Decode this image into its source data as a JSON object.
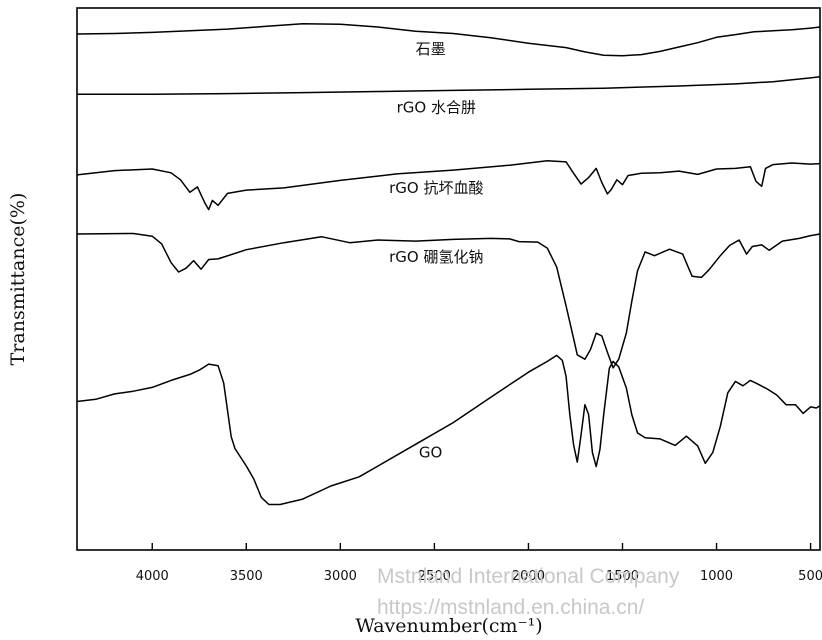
{
  "chart_data": {
    "type": "line",
    "title": "",
    "xlabel": "Wavenumber(cm⁻¹)",
    "ylabel": "Transmittance(%)",
    "xlim": [
      4400,
      450
    ],
    "x_reversed": true,
    "grid": false,
    "x_ticks": [
      4000,
      3500,
      3000,
      2500,
      2000,
      1500,
      1000,
      500
    ],
    "x_tick_labels": [
      "4000",
      "3500",
      "3000",
      "2500",
      "2000",
      "1500",
      "1000",
      "500"
    ],
    "series_note": "y values are relative transmittance in arbitrary units (0 = bottom of axis, 100 = top); the y axis has no ticks",
    "series": [
      {
        "name": "石墨",
        "color": "#000000",
        "label_x": 2520,
        "points": [
          [
            4400,
            95.2
          ],
          [
            4200,
            95.3
          ],
          [
            4000,
            95.5
          ],
          [
            3800,
            95.8
          ],
          [
            3600,
            96.1
          ],
          [
            3400,
            96.6
          ],
          [
            3200,
            97.1
          ],
          [
            3000,
            97.0
          ],
          [
            2800,
            96.5
          ],
          [
            2600,
            95.7
          ],
          [
            2400,
            95.3
          ],
          [
            2200,
            94.5
          ],
          [
            2000,
            93.5
          ],
          [
            1800,
            92.7
          ],
          [
            1700,
            91.9
          ],
          [
            1600,
            91.3
          ],
          [
            1500,
            91.2
          ],
          [
            1400,
            91.4
          ],
          [
            1300,
            92.0
          ],
          [
            1200,
            92.8
          ],
          [
            1100,
            93.6
          ],
          [
            1000,
            94.6
          ],
          [
            900,
            95.1
          ],
          [
            800,
            95.6
          ],
          [
            700,
            95.8
          ],
          [
            600,
            96.0
          ],
          [
            500,
            96.3
          ],
          [
            450,
            96.5
          ]
        ]
      },
      {
        "name": "rGO 水合肼",
        "color": "#000000",
        "label_x": 2490,
        "points": [
          [
            4400,
            84.1
          ],
          [
            4000,
            84.1
          ],
          [
            3600,
            84.2
          ],
          [
            3200,
            84.4
          ],
          [
            2800,
            84.6
          ],
          [
            2400,
            84.8
          ],
          [
            2000,
            85.0
          ],
          [
            1600,
            85.2
          ],
          [
            1200,
            85.6
          ],
          [
            900,
            86.0
          ],
          [
            700,
            86.4
          ],
          [
            500,
            87.1
          ],
          [
            450,
            87.3
          ]
        ]
      },
      {
        "name": "rGO 抗坏血酸",
        "color": "#000000",
        "label_x": 2490,
        "points": [
          [
            4400,
            69.2
          ],
          [
            4200,
            70.0
          ],
          [
            4000,
            70.3
          ],
          [
            3900,
            69.6
          ],
          [
            3850,
            68.3
          ],
          [
            3800,
            66.0
          ],
          [
            3760,
            67.0
          ],
          [
            3720,
            64.0
          ],
          [
            3700,
            62.8
          ],
          [
            3680,
            64.5
          ],
          [
            3650,
            63.6
          ],
          [
            3600,
            65.8
          ],
          [
            3500,
            66.4
          ],
          [
            3300,
            66.8
          ],
          [
            3000,
            68.2
          ],
          [
            2700,
            69.4
          ],
          [
            2400,
            70.1
          ],
          [
            2100,
            71.0
          ],
          [
            1900,
            71.8
          ],
          [
            1800,
            71.6
          ],
          [
            1760,
            69.5
          ],
          [
            1720,
            67.5
          ],
          [
            1680,
            68.7
          ],
          [
            1640,
            70.4
          ],
          [
            1610,
            67.8
          ],
          [
            1580,
            65.7
          ],
          [
            1560,
            66.5
          ],
          [
            1530,
            68.3
          ],
          [
            1500,
            67.4
          ],
          [
            1470,
            69.1
          ],
          [
            1400,
            69.5
          ],
          [
            1300,
            69.6
          ],
          [
            1200,
            69.9
          ],
          [
            1100,
            69.3
          ],
          [
            1000,
            70.3
          ],
          [
            900,
            70.4
          ],
          [
            820,
            70.7
          ],
          [
            790,
            68.0
          ],
          [
            760,
            67.1
          ],
          [
            740,
            70.4
          ],
          [
            700,
            71.1
          ],
          [
            600,
            71.4
          ],
          [
            500,
            71.2
          ],
          [
            450,
            71.3
          ]
        ]
      },
      {
        "name": "rGO 硼氢化钠",
        "color": "#000000",
        "label_x": 2490,
        "points": [
          [
            4400,
            58.3
          ],
          [
            4100,
            58.4
          ],
          [
            4000,
            57.9
          ],
          [
            3950,
            56.5
          ],
          [
            3900,
            53.0
          ],
          [
            3860,
            51.3
          ],
          [
            3820,
            52.0
          ],
          [
            3780,
            53.4
          ],
          [
            3740,
            51.8
          ],
          [
            3700,
            53.6
          ],
          [
            3650,
            53.7
          ],
          [
            3500,
            55.4
          ],
          [
            3300,
            56.7
          ],
          [
            3100,
            57.8
          ],
          [
            2950,
            56.7
          ],
          [
            2800,
            57.2
          ],
          [
            2600,
            57.0
          ],
          [
            2400,
            57.3
          ],
          [
            2200,
            57.5
          ],
          [
            2100,
            57.4
          ],
          [
            2050,
            56.9
          ],
          [
            1950,
            56.8
          ],
          [
            1900,
            55.7
          ],
          [
            1850,
            52.2
          ],
          [
            1800,
            45.0
          ],
          [
            1760,
            39.0
          ],
          [
            1740,
            36.0
          ],
          [
            1700,
            35.2
          ],
          [
            1670,
            37.0
          ],
          [
            1640,
            40.0
          ],
          [
            1610,
            39.5
          ],
          [
            1580,
            36.5
          ],
          [
            1550,
            33.6
          ],
          [
            1520,
            35.2
          ],
          [
            1480,
            40.0
          ],
          [
            1450,
            46.0
          ],
          [
            1420,
            51.5
          ],
          [
            1380,
            55.0
          ],
          [
            1330,
            54.3
          ],
          [
            1250,
            55.5
          ],
          [
            1180,
            54.6
          ],
          [
            1130,
            50.5
          ],
          [
            1080,
            50.3
          ],
          [
            1040,
            51.7
          ],
          [
            980,
            54.3
          ],
          [
            930,
            56.2
          ],
          [
            880,
            57.2
          ],
          [
            840,
            54.6
          ],
          [
            810,
            56.0
          ],
          [
            760,
            56.3
          ],
          [
            720,
            55.3
          ],
          [
            650,
            57.0
          ],
          [
            560,
            57.5
          ],
          [
            500,
            58.0
          ],
          [
            450,
            58.3
          ]
        ]
      },
      {
        "name": "GO",
        "color": "#000000",
        "label_x": 2520,
        "points": [
          [
            4400,
            27.4
          ],
          [
            4300,
            27.8
          ],
          [
            4200,
            28.8
          ],
          [
            4100,
            29.3
          ],
          [
            4000,
            30.0
          ],
          [
            3900,
            31.3
          ],
          [
            3800,
            32.4
          ],
          [
            3750,
            33.2
          ],
          [
            3700,
            34.3
          ],
          [
            3650,
            34.0
          ],
          [
            3620,
            30.8
          ],
          [
            3580,
            20.9
          ],
          [
            3560,
            18.7
          ],
          [
            3500,
            15.5
          ],
          [
            3460,
            13.1
          ],
          [
            3420,
            9.7
          ],
          [
            3380,
            8.4
          ],
          [
            3320,
            8.4
          ],
          [
            3200,
            9.4
          ],
          [
            3050,
            11.8
          ],
          [
            2900,
            13.5
          ],
          [
            2800,
            15.5
          ],
          [
            2600,
            19.5
          ],
          [
            2400,
            23.5
          ],
          [
            2200,
            28.2
          ],
          [
            2000,
            32.8
          ],
          [
            1900,
            34.8
          ],
          [
            1850,
            35.9
          ],
          [
            1820,
            35.0
          ],
          [
            1800,
            32.0
          ],
          [
            1780,
            25.0
          ],
          [
            1760,
            19.4
          ],
          [
            1740,
            16.2
          ],
          [
            1720,
            21.3
          ],
          [
            1700,
            26.8
          ],
          [
            1680,
            25.0
          ],
          [
            1660,
            18.0
          ],
          [
            1640,
            15.4
          ],
          [
            1620,
            18.5
          ],
          [
            1600,
            25.0
          ],
          [
            1570,
            33.5
          ],
          [
            1550,
            34.8
          ],
          [
            1520,
            33.8
          ],
          [
            1480,
            29.9
          ],
          [
            1450,
            24.9
          ],
          [
            1420,
            21.6
          ],
          [
            1380,
            20.7
          ],
          [
            1300,
            20.5
          ],
          [
            1220,
            19.3
          ],
          [
            1160,
            21.0
          ],
          [
            1100,
            19.2
          ],
          [
            1060,
            16.0
          ],
          [
            1020,
            18.0
          ],
          [
            980,
            22.8
          ],
          [
            940,
            29.0
          ],
          [
            900,
            31.1
          ],
          [
            860,
            30.3
          ],
          [
            820,
            31.3
          ],
          [
            780,
            30.6
          ],
          [
            730,
            29.7
          ],
          [
            680,
            28.6
          ],
          [
            630,
            26.8
          ],
          [
            580,
            26.8
          ],
          [
            540,
            25.2
          ],
          [
            500,
            26.4
          ],
          [
            470,
            26.2
          ],
          [
            450,
            26.6
          ]
        ]
      }
    ]
  },
  "watermark": {
    "line1": "Mstnland International Company",
    "line2": "https://mstnland.en.china.cn/"
  }
}
